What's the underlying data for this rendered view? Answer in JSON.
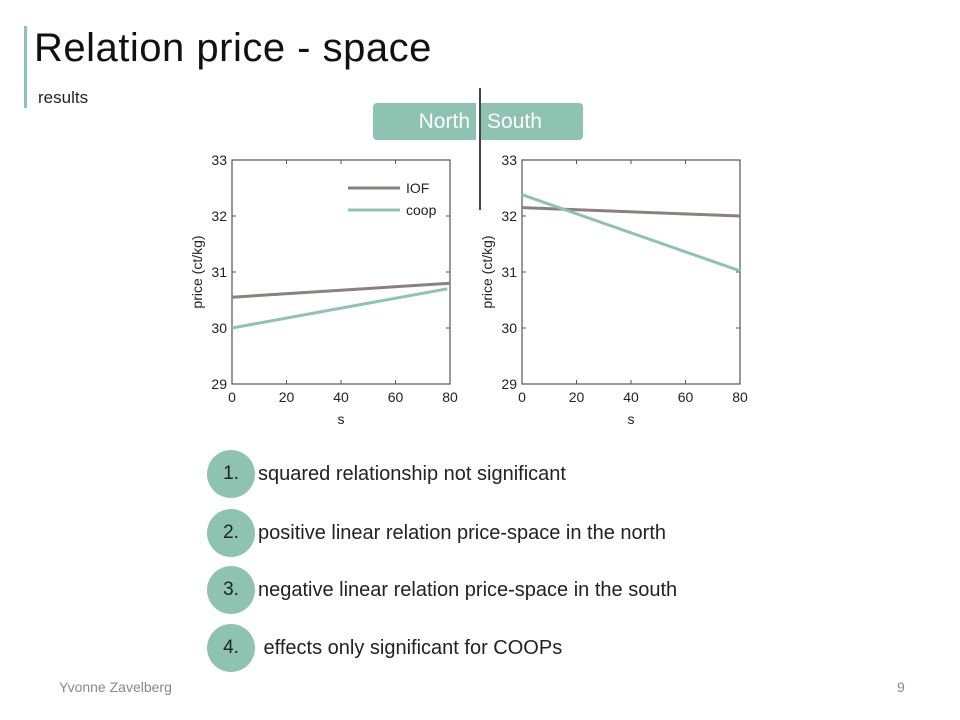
{
  "title": "Relation price - space",
  "subtitle": "results",
  "regions": {
    "north": "North",
    "south": "South"
  },
  "colors": {
    "accent": "#8dc3b0",
    "iof": "#8c8078",
    "coop": "#8dc3b0"
  },
  "chart_data": [
    {
      "type": "line",
      "region": "North",
      "xlabel": "s",
      "ylabel": "price (ct/kg)",
      "xlim": [
        0,
        80
      ],
      "ylim": [
        29,
        33
      ],
      "xticks": [
        0,
        20,
        40,
        60,
        80
      ],
      "yticks": [
        29,
        30,
        31,
        32,
        33
      ],
      "legend": "top-right",
      "grid": false,
      "series": [
        {
          "name": "IOF",
          "x": [
            0,
            80
          ],
          "y": [
            30.55,
            30.8
          ]
        },
        {
          "name": "coop",
          "x": [
            0,
            79
          ],
          "y": [
            30.0,
            30.7
          ]
        }
      ]
    },
    {
      "type": "line",
      "region": "South",
      "xlabel": "s",
      "ylabel": "price (ct/kg)",
      "xlim": [
        0,
        80
      ],
      "ylim": [
        29,
        33
      ],
      "xticks": [
        0,
        20,
        40,
        60,
        80
      ],
      "yticks": [
        29,
        30,
        31,
        32,
        33
      ],
      "grid": false,
      "series": [
        {
          "name": "IOF",
          "x": [
            0,
            80
          ],
          "y": [
            32.15,
            32.0
          ]
        },
        {
          "name": "coop",
          "x": [
            0,
            80
          ],
          "y": [
            32.38,
            31.02
          ]
        }
      ]
    }
  ],
  "points": [
    {
      "num": "1.",
      "text": "squared relationship not significant"
    },
    {
      "num": "2.",
      "text": "positive linear relation price-space in the north"
    },
    {
      "num": "3.",
      "text": "negative linear relation price-space in the south"
    },
    {
      "num": "4.",
      "text": " effects only significant for COOPs"
    }
  ],
  "footer": {
    "author": "Yvonne Zavelberg",
    "page": "9"
  }
}
